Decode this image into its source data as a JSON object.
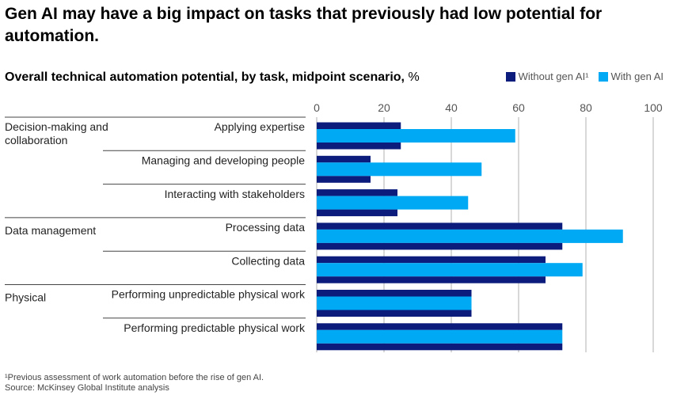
{
  "page": {
    "title": "Gen AI may have a big impact on tasks that previously had low potential for automation.",
    "subtitle": "Overall technical automation potential, by task, midpoint scenario,",
    "subtitle_unit": "%",
    "footnote": "¹Previous assessment of work automation before the rise of gen AI.",
    "source": "Source: McKinsey Global Institute analysis"
  },
  "legend": {
    "without": "Without gen AI¹",
    "with": "With gen AI"
  },
  "colors": {
    "without": "#0b1c7d",
    "with": "#00a9f4",
    "grid": "#b0b0b0",
    "divider": "#444444"
  },
  "chart_data": {
    "type": "bar",
    "orientation": "horizontal",
    "title": "Overall technical automation potential, by task, midpoint scenario, %",
    "xlim": [
      0,
      100
    ],
    "xticks": [
      0,
      20,
      40,
      60,
      80,
      100
    ],
    "grid": true,
    "legend_position": "top-right",
    "groups": [
      {
        "label": "Decision-making and collaboration",
        "categories": [
          "Applying expertise",
          "Managing and developing people",
          "Interacting with stakeholders"
        ]
      },
      {
        "label": "Data management",
        "categories": [
          "Processing data",
          "Collecting data"
        ]
      },
      {
        "label": "Physical",
        "categories": [
          "Performing unpredictable physical work",
          "Performing predictable physical work"
        ]
      }
    ],
    "categories": [
      "Applying expertise",
      "Managing and developing people",
      "Interacting with stakeholders",
      "Processing data",
      "Collecting data",
      "Performing unpredictable physical work",
      "Performing predictable physical work"
    ],
    "series": [
      {
        "name": "Without gen AI¹",
        "values": [
          25,
          16,
          24,
          73,
          68,
          46,
          73
        ]
      },
      {
        "name": "With gen AI",
        "values": [
          59,
          49,
          45,
          91,
          79,
          46,
          73
        ]
      }
    ]
  }
}
